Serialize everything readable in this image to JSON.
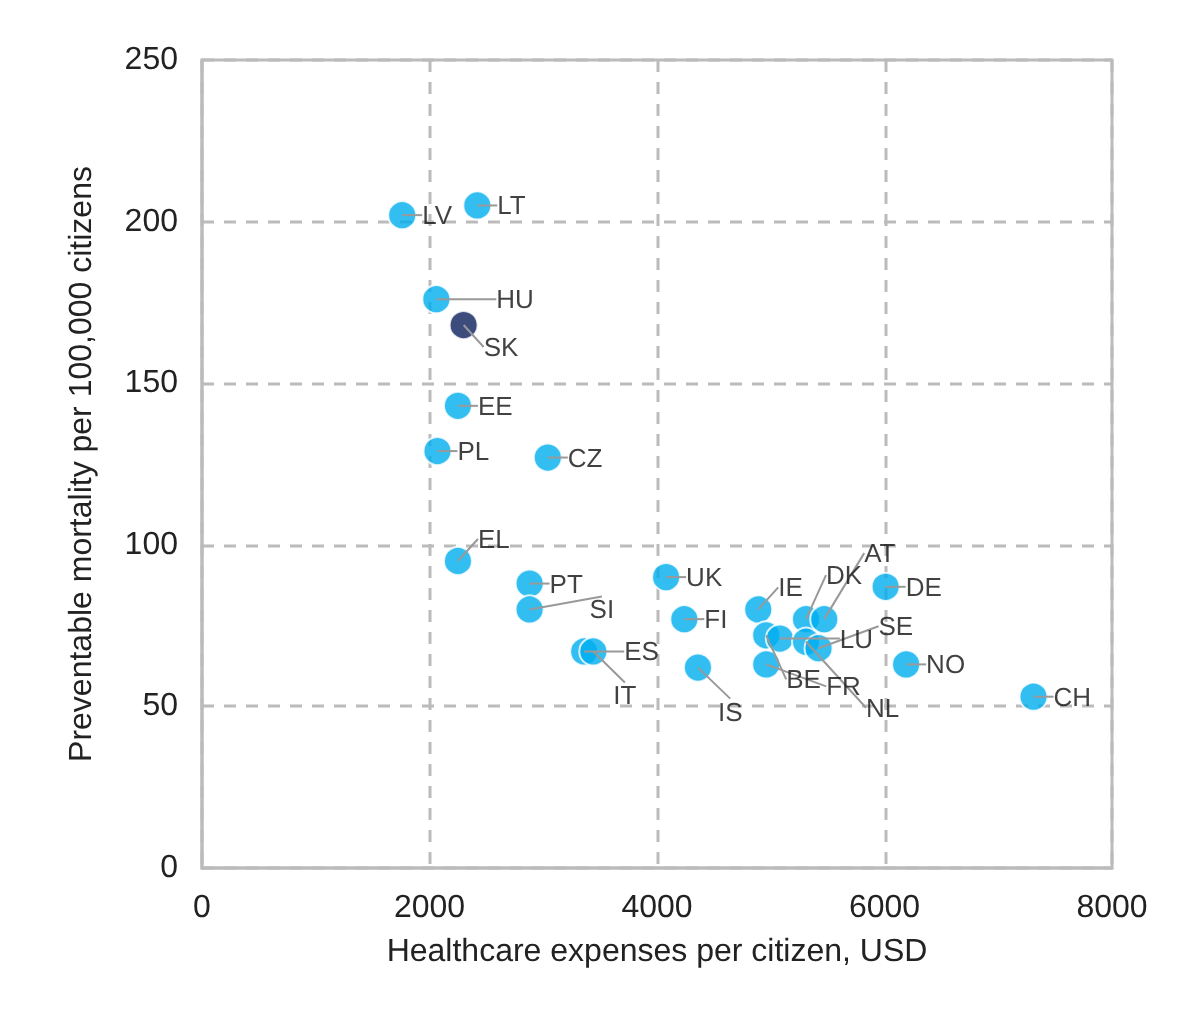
{
  "chart_data": {
    "type": "scatter",
    "xlabel": "Healthcare expenses per citizen, USD",
    "ylabel": "Preventable mortality per 100,000 citizens",
    "x": [
      1760,
      2420,
      2060,
      2300,
      2250,
      2070,
      3040,
      2250,
      2880,
      2880,
      3360,
      3440,
      4080,
      4240,
      4360,
      4890,
      4960,
      5080,
      5310,
      5310,
      5470,
      4960,
      5420,
      6010,
      6190,
      7310
    ],
    "values": [
      202,
      205,
      176,
      168,
      143,
      129,
      127,
      95,
      88,
      80,
      67,
      67,
      90,
      77,
      62,
      80,
      72,
      71,
      77,
      70,
      77,
      63,
      68,
      87,
      63,
      53
    ],
    "colors": [
      "#00aeef",
      "#00aeef",
      "#00aeef",
      "#0a1f5c",
      "#00aeef",
      "#00aeef",
      "#00aeef",
      "#00aeef",
      "#00aeef",
      "#00aeef",
      "#00aeef",
      "#00aeef",
      "#00aeef",
      "#00aeef",
      "#00aeef",
      "#00aeef",
      "#00aeef",
      "#00aeef",
      "#00aeef",
      "#00aeef",
      "#00aeef",
      "#00aeef",
      "#00aeef",
      "#00aeef",
      "#00aeef",
      "#00aeef"
    ],
    "annotations": [
      {
        "text": "LV",
        "x": 1760,
        "y": 202
      },
      {
        "text": "LT",
        "x": 2420,
        "y": 205
      },
      {
        "text": "HU",
        "x": 2060,
        "y": 176
      },
      {
        "text": "SK",
        "x": 2300,
        "y": 168
      },
      {
        "text": "EE",
        "x": 2250,
        "y": 143
      },
      {
        "text": "PL",
        "x": 2070,
        "y": 129
      },
      {
        "text": "CZ",
        "x": 3040,
        "y": 127
      },
      {
        "text": "EL",
        "x": 2250,
        "y": 95
      },
      {
        "text": "PT",
        "x": 2880,
        "y": 88
      },
      {
        "text": "SI",
        "x": 2880,
        "y": 80
      },
      {
        "text": "ES",
        "x": 3360,
        "y": 67
      },
      {
        "text": "IT",
        "x": 3440,
        "y": 67
      },
      {
        "text": "UK",
        "x": 4080,
        "y": 90
      },
      {
        "text": "FI",
        "x": 4240,
        "y": 77
      },
      {
        "text": "IS",
        "x": 4360,
        "y": 62
      },
      {
        "text": "IE",
        "x": 4890,
        "y": 80
      },
      {
        "text": "BE",
        "x": 4960,
        "y": 72
      },
      {
        "text": "LU",
        "x": 5080,
        "y": 71
      },
      {
        "text": "DK",
        "x": 5310,
        "y": 77
      },
      {
        "text": "NL",
        "x": 5310,
        "y": 70
      },
      {
        "text": "AT",
        "x": 5470,
        "y": 77
      },
      {
        "text": "FR",
        "x": 4960,
        "y": 63
      },
      {
        "text": "SE",
        "x": 5420,
        "y": 68
      },
      {
        "text": "DE",
        "x": 6010,
        "y": 87
      },
      {
        "text": "NO",
        "x": 6190,
        "y": 63
      },
      {
        "text": "CH",
        "x": 7310,
        "y": 53
      }
    ],
    "xlim": [
      0,
      8000
    ],
    "xticks": [
      0,
      2000,
      4000,
      6000,
      8000
    ],
    "ylim": [
      0,
      250
    ],
    "yticks": [
      0,
      50,
      100,
      150,
      200,
      250
    ],
    "grid": true,
    "marker": "circle"
  }
}
